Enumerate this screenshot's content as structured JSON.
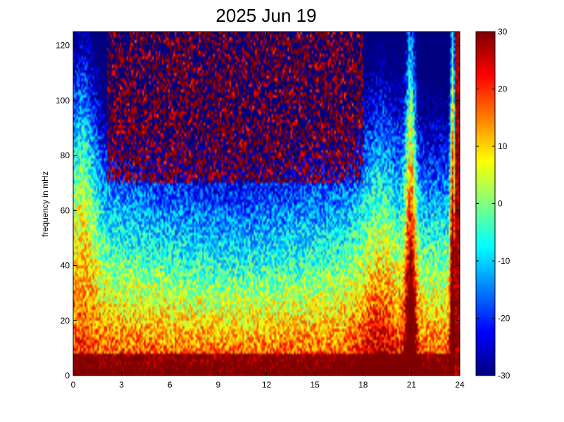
{
  "chart_data": {
    "type": "heatmap",
    "title": "2025 Jun 19",
    "xlabel": "",
    "ylabel": "frequency in mHz",
    "xlim": [
      0,
      24
    ],
    "ylim": [
      0,
      125
    ],
    "x_ticks": [
      "0",
      "3",
      "6",
      "9",
      "12",
      "15",
      "18",
      "21",
      "24"
    ],
    "y_ticks": [
      "0",
      "20",
      "40",
      "60",
      "80",
      "100",
      "120"
    ],
    "colorbar": {
      "colormap": "jet",
      "range": [
        -30,
        30
      ],
      "ticks": [
        "30",
        "20",
        "10",
        "0",
        "-10",
        "-20",
        "-30"
      ]
    },
    "features": {
      "low_frequency_band_mhz": [
        0,
        8
      ],
      "high_power_spike_hours": [
        20.8,
        23.6
      ],
      "saturated_region_hours": [
        23.5,
        24
      ]
    }
  },
  "colors": {
    "axes": "#000000",
    "background": "#ffffff"
  }
}
